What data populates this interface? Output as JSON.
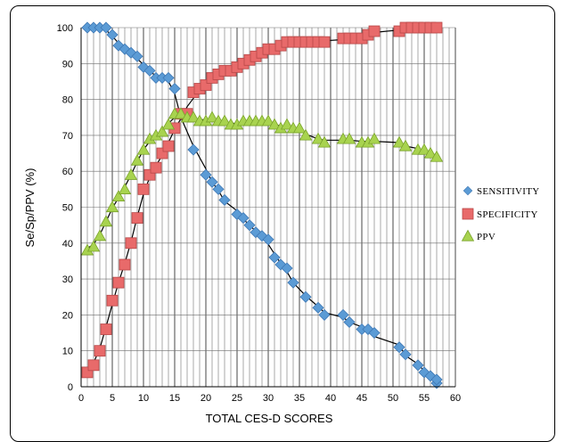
{
  "chart_data": {
    "type": "scatter",
    "xlabel": "TOTAL CES-D SCORES",
    "ylabel": "Se/Sp/PPV (%)",
    "xlim": [
      0,
      60
    ],
    "ylim": [
      0,
      100
    ],
    "xticks": [
      "0",
      "5",
      "10",
      "15",
      "20",
      "25",
      "30",
      "35",
      "40",
      "45",
      "50",
      "55",
      "60"
    ],
    "yticks": [
      "0",
      "10",
      "20",
      "30",
      "40",
      "50",
      "60",
      "70",
      "80",
      "90",
      "100"
    ],
    "grid": "vertical and horizontal",
    "legend_position": "right",
    "series": [
      {
        "name": "SENSITIVITY",
        "marker": "diamond",
        "color": "#5b9bd5",
        "stroke": "#3f78b4",
        "x": [
          1,
          2,
          3,
          4,
          5,
          6,
          7,
          8,
          9,
          10,
          11,
          12,
          13,
          14,
          15,
          16,
          18,
          20,
          21,
          22,
          23,
          25,
          26,
          27,
          28,
          29,
          30,
          31,
          32,
          33,
          34,
          36,
          38,
          39,
          42,
          43,
          45,
          46,
          47,
          51,
          52,
          54,
          55,
          56,
          57,
          57
        ],
        "y": [
          100,
          100,
          100,
          100,
          98,
          95,
          94,
          93,
          92,
          89,
          88,
          86,
          86,
          86,
          83,
          76,
          66,
          59,
          57,
          55,
          52,
          48,
          47,
          45,
          43,
          42,
          41,
          36,
          34,
          33,
          29,
          25,
          22,
          20,
          20,
          18,
          16,
          16,
          15,
          11,
          9,
          6,
          4,
          3,
          1,
          2
        ]
      },
      {
        "name": "SPECIFICITY",
        "marker": "square",
        "color": "#e86a6a",
        "stroke": "#b84848",
        "x": [
          1,
          2,
          3,
          4,
          5,
          6,
          7,
          8,
          9,
          10,
          11,
          12,
          13,
          14,
          15,
          16,
          17,
          18,
          19,
          20,
          21,
          22,
          23,
          24,
          25,
          26,
          27,
          28,
          29,
          30,
          31,
          32,
          33,
          34,
          35,
          36,
          37,
          38,
          39,
          42,
          43,
          44,
          45,
          46,
          47,
          51,
          52,
          53,
          54,
          55,
          56,
          57
        ],
        "y": [
          4,
          6,
          10,
          16,
          24,
          29,
          34,
          40,
          47,
          55,
          59,
          61,
          65,
          67,
          72,
          76,
          76,
          82,
          83,
          84,
          86,
          87,
          88,
          88,
          89,
          90,
          91,
          92,
          93,
          94,
          94,
          95,
          96,
          96,
          96,
          96,
          96,
          96,
          96,
          97,
          97,
          97,
          97,
          98,
          99,
          99,
          100,
          100,
          100,
          100,
          100,
          100
        ]
      },
      {
        "name": "PPV",
        "marker": "triangle",
        "color": "#a8d34f",
        "stroke": "#7aa32c",
        "x": [
          1,
          2,
          3,
          4,
          5,
          6,
          7,
          8,
          9,
          10,
          11,
          12,
          13,
          14,
          15,
          16,
          17,
          18,
          19,
          20,
          21,
          22,
          23,
          24,
          25,
          26,
          27,
          28,
          29,
          30,
          31,
          32,
          33,
          34,
          35,
          36,
          38,
          39,
          42,
          43,
          45,
          46,
          47,
          51,
          52,
          54,
          55,
          56,
          57
        ],
        "y": [
          38,
          39,
          42,
          46,
          50,
          53,
          55,
          59,
          63,
          66,
          69,
          70,
          71,
          73,
          76,
          76,
          75,
          75,
          74,
          74,
          75,
          74,
          74,
          73,
          73,
          74,
          74,
          74,
          74,
          74,
          73,
          72,
          73,
          72,
          72,
          70,
          69,
          68,
          69,
          69,
          68,
          68,
          69,
          68,
          67,
          66,
          66,
          65,
          64
        ]
      }
    ]
  }
}
